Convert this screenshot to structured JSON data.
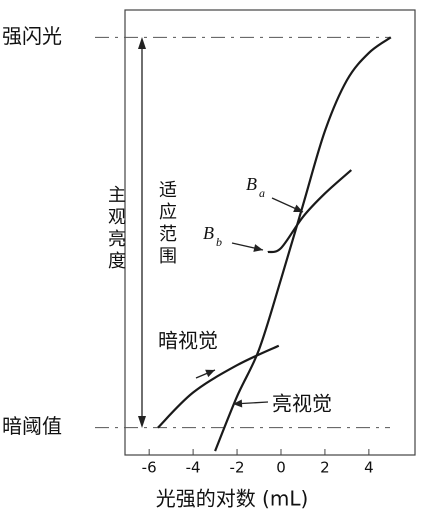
{
  "chart_data": {
    "type": "line",
    "xlabel": "光强的对数 (mL)",
    "xlim": [
      -7.1,
      6.1
    ],
    "xticks": [
      -6,
      -4,
      -2,
      0,
      2,
      4
    ],
    "ylim": [
      -7,
      107
    ],
    "yticks": [
      {
        "value": 100,
        "label": "强闪光"
      },
      {
        "value": 0,
        "label": "暗阈值"
      }
    ],
    "ylabel": "主观亮度",
    "range_label": "适应范围",
    "color": "#1a1a1a",
    "series": [
      {
        "name": "亮视觉",
        "x": [
          -3,
          -2,
          -1,
          0,
          1,
          2,
          3,
          4,
          5
        ],
        "values": [
          -6,
          8,
          20,
          38,
          57,
          76,
          89,
          96,
          100
        ]
      },
      {
        "name": "暗视觉",
        "x": [
          -5.6,
          -4,
          -2,
          -0.1
        ],
        "values": [
          0,
          9,
          16,
          21
        ]
      },
      {
        "x": [
          -0.6,
          0,
          1,
          2,
          3.2
        ],
        "values": [
          45,
          46,
          54,
          60,
          66
        ]
      }
    ],
    "annotations": [
      {
        "text": "B",
        "subscript": "a"
      },
      {
        "text": "B",
        "subscript": "b"
      }
    ]
  }
}
